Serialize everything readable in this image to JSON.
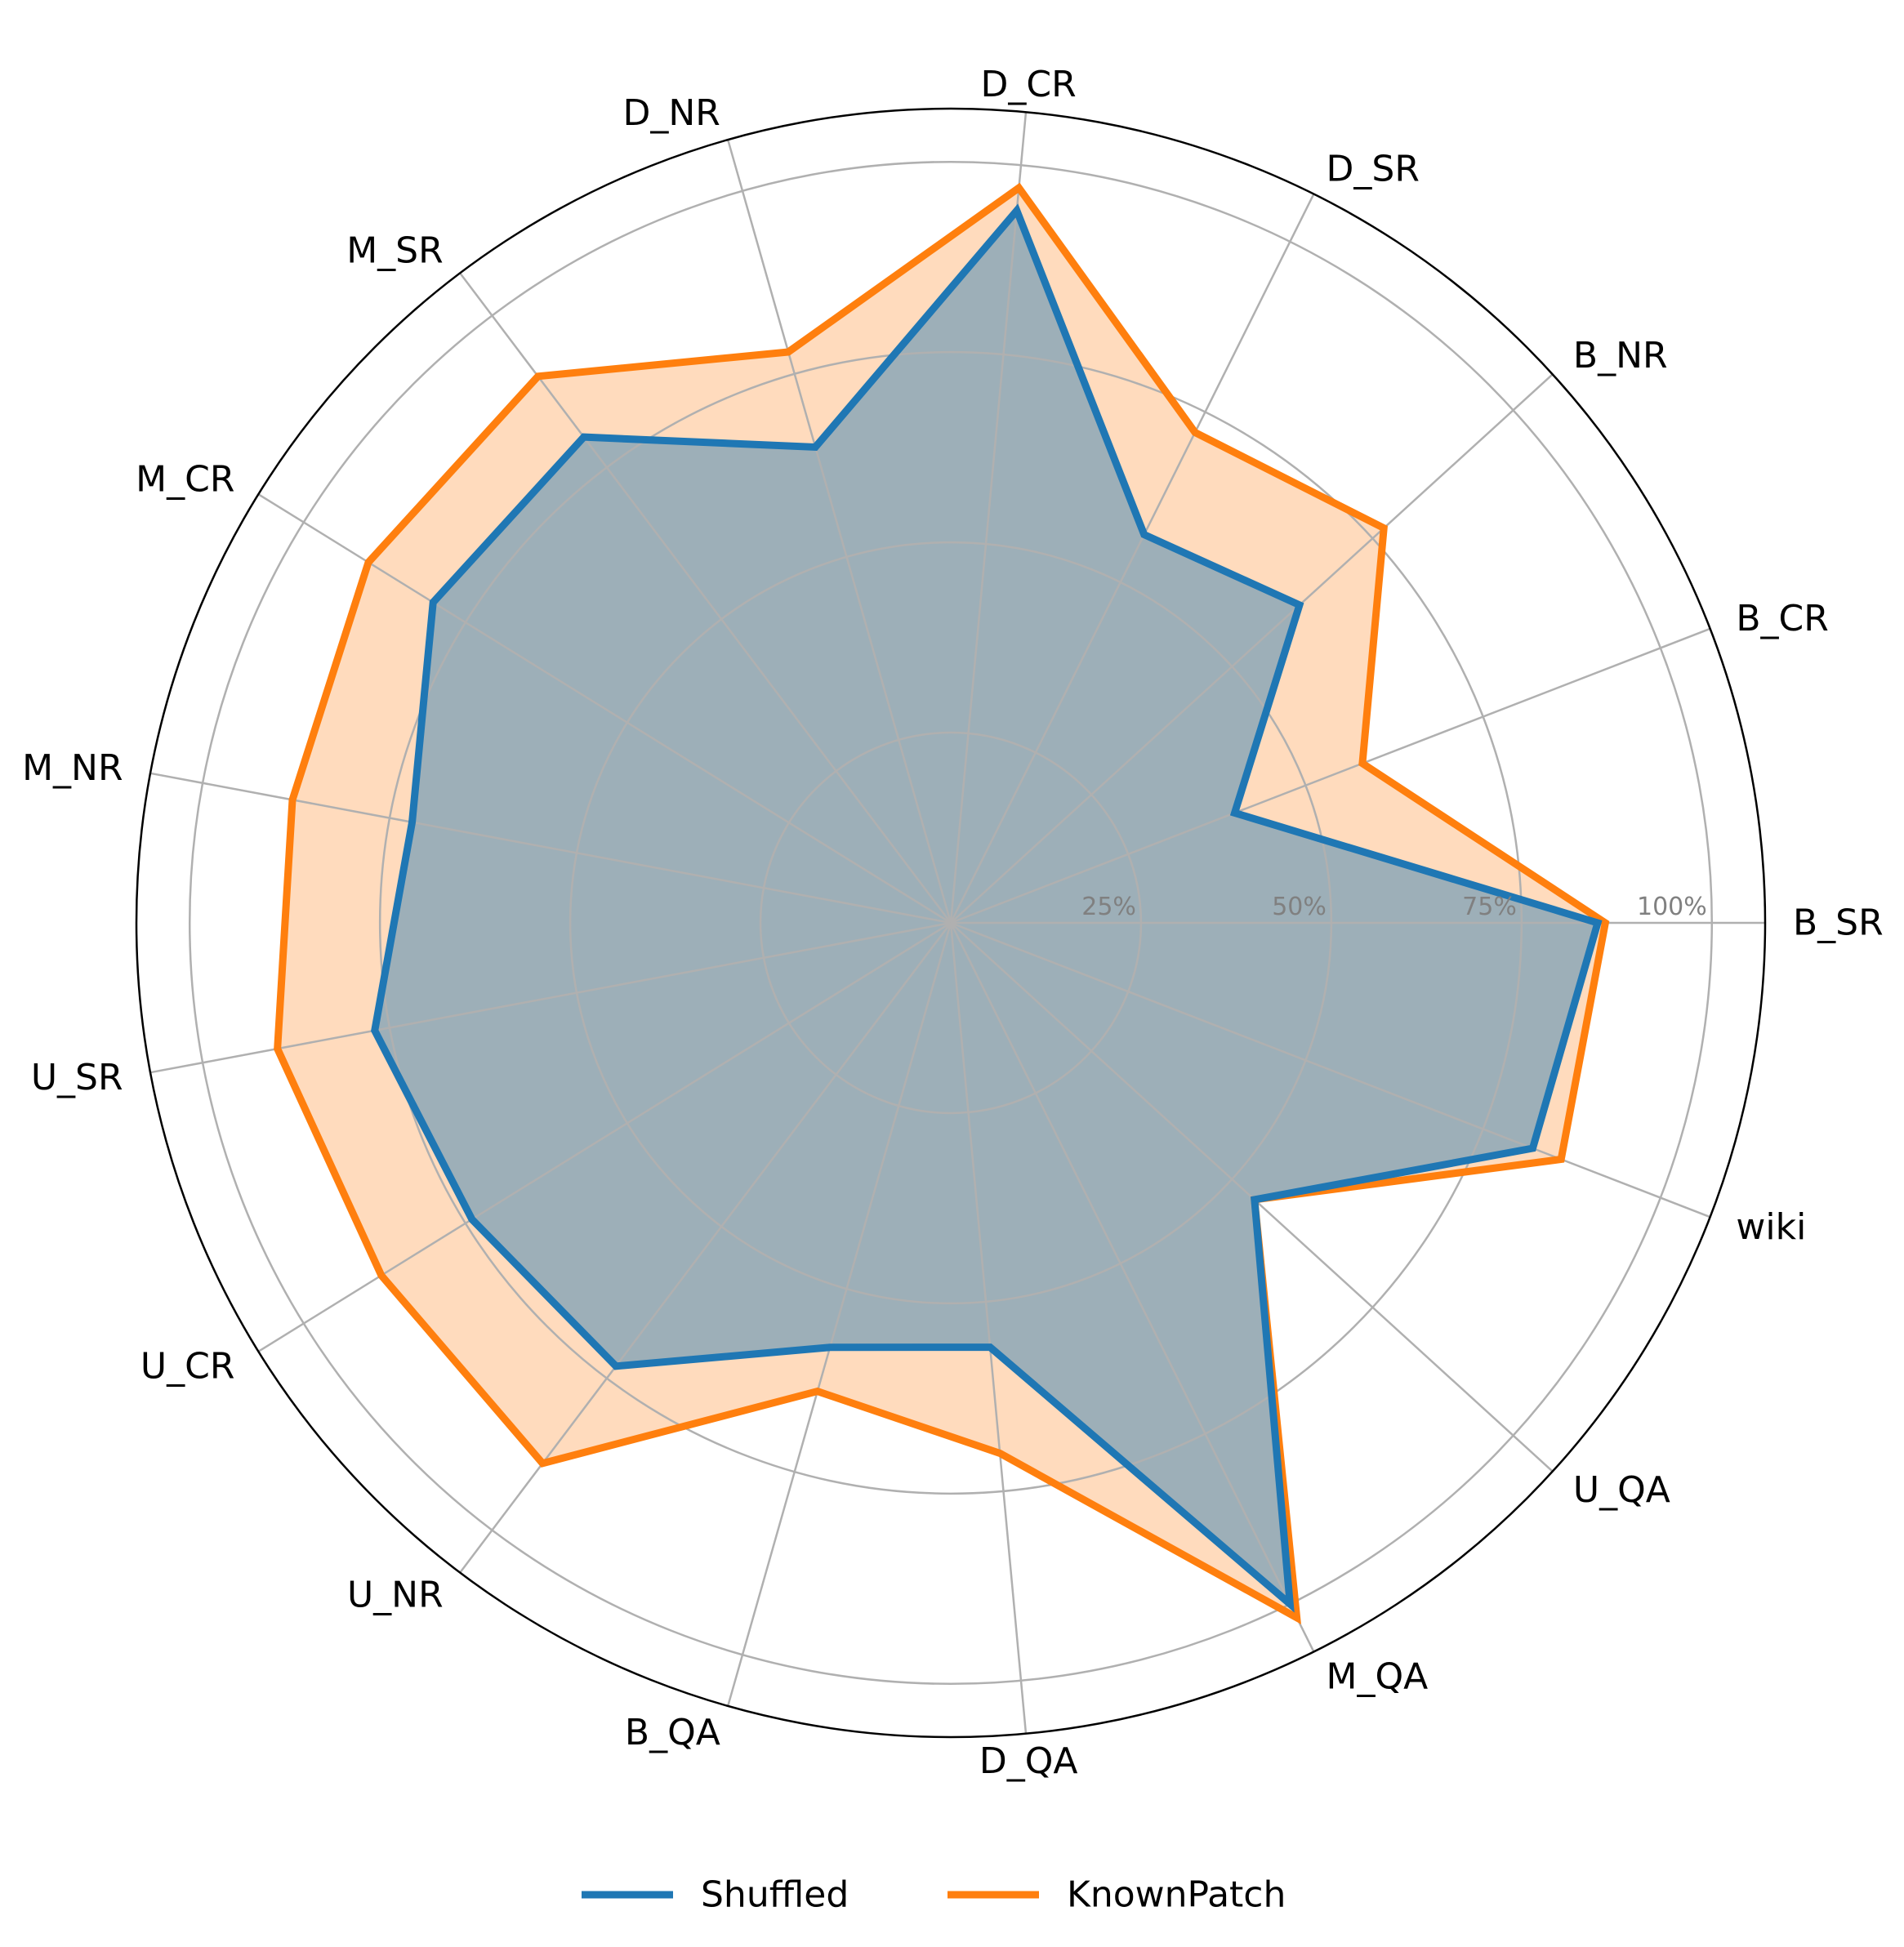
{
  "chart_data": {
    "type": "radar",
    "categories": [
      "B_SR",
      "B_CR",
      "B_NR",
      "D_SR",
      "D_CR",
      "D_NR",
      "M_SR",
      "M_CR",
      "M_NR",
      "U_SR",
      "U_CR",
      "U_NR",
      "B_QA",
      "D_QA",
      "M_QA",
      "U_QA",
      "wiki"
    ],
    "rlim": [
      0,
      107
    ],
    "ring_ticks": [
      25,
      50,
      75,
      100
    ],
    "ring_tick_labels": [
      "25%",
      "50%",
      "75%",
      "100%"
    ],
    "grid": true,
    "legend_position": "bottom-center",
    "series": [
      {
        "name": "Shuffled",
        "color": "#1f77b4",
        "values": [
          85,
          40,
          62,
          57,
          94,
          65,
          80,
          80,
          72,
          77,
          74,
          73,
          58,
          56,
          100,
          54,
          82
        ]
      },
      {
        "name": "KnownPatch",
        "color": "#ff7f0e",
        "fill_color": "#ffdbbd",
        "values": [
          86,
          58,
          77,
          72,
          97,
          78,
          90,
          90,
          88,
          90,
          88,
          89,
          64,
          70,
          102,
          54,
          86
        ]
      }
    ]
  }
}
